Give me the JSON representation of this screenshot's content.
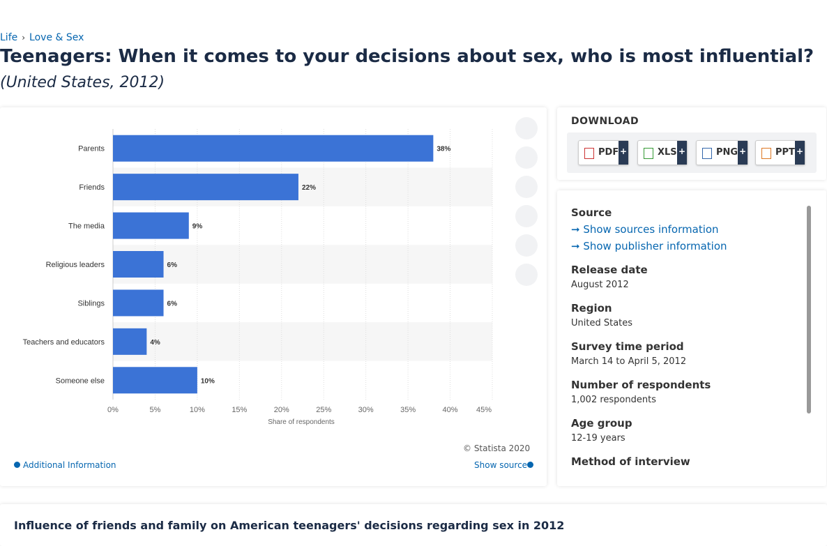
{
  "breadcrumb": [
    "Life",
    "Love & Sex"
  ],
  "title": "Teenagers: When it comes to your decisions about sex, who is most influential?",
  "subtitle": "(United States, 2012)",
  "chart_data": {
    "type": "bar",
    "orientation": "horizontal",
    "categories": [
      "Parents",
      "Friends",
      "The media",
      "Religious leaders",
      "Siblings",
      "Teachers and educators",
      "Someone else"
    ],
    "values": [
      38,
      22,
      9,
      6,
      6,
      4,
      10
    ],
    "value_labels": [
      "38%",
      "22%",
      "9%",
      "6%",
      "6%",
      "4%",
      "10%"
    ],
    "color": "#3b73d6",
    "xlabel": "Share of respondents",
    "xlim": [
      0,
      45
    ],
    "xticks": [
      {
        "value": 0,
        "label": "0%"
      },
      {
        "value": 5,
        "label": "5%"
      },
      {
        "value": 10,
        "label": "10%"
      },
      {
        "value": 15,
        "label": "15%"
      },
      {
        "value": 20,
        "label": "20%"
      },
      {
        "value": 25,
        "label": "25%"
      },
      {
        "value": 30,
        "label": "30%"
      },
      {
        "value": 35,
        "label": "35%"
      },
      {
        "value": 40,
        "label": "40%"
      },
      {
        "value": 45,
        "label": "45%"
      }
    ],
    "grid": true
  },
  "copyright": "© Statista 2020",
  "additional_info": "Additional Information",
  "show_source": "Show source",
  "download": {
    "heading": "DOWNLOAD",
    "formats": [
      "PDF",
      "XLS",
      "PNG",
      "PPT"
    ],
    "plus": "+"
  },
  "details": {
    "source_heading": "Source",
    "show_sources": "Show sources information",
    "show_publisher": "Show publisher information",
    "items": [
      {
        "label": "Release date",
        "value": "August 2012"
      },
      {
        "label": "Region",
        "value": "United States"
      },
      {
        "label": "Survey time period",
        "value": "March 14 to April 5, 2012"
      },
      {
        "label": "Number of respondents",
        "value": "1,002 respondents"
      },
      {
        "label": "Age group",
        "value": "12-19 years"
      },
      {
        "label": "Method of interview",
        "value": null
      }
    ]
  },
  "description_title": "Influence of friends and family on American teenagers' decisions regarding sex in 2012"
}
